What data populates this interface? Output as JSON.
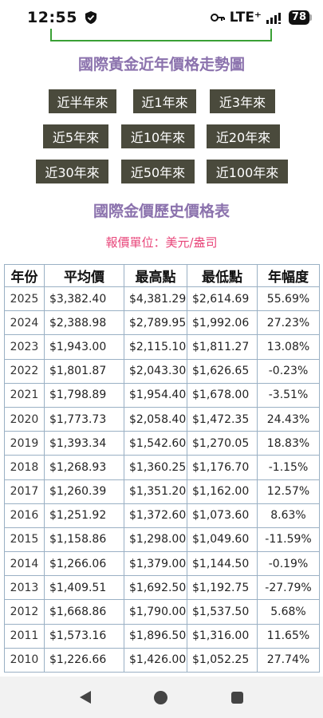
{
  "status": {
    "time": "12:55",
    "network": "LTE⁺",
    "battery": "78"
  },
  "chart_title": "國際黃金近年價格走勢圖",
  "period_buttons": [
    "近半年來",
    "近1年來",
    "近3年來",
    "近5年來",
    "近10年來",
    "近20年來",
    "近30年來",
    "近50年來",
    "近100年來"
  ],
  "table_title": "國際金價歷史價格表",
  "unit_label": "報價單位：美元/盎司",
  "table": {
    "headers": [
      "年份",
      "平均價",
      "最高點",
      "最低點",
      "年幅度"
    ],
    "rows": [
      [
        "2025",
        "$3,382.40",
        "$4,381.29",
        "$2,614.69",
        "55.69%"
      ],
      [
        "2024",
        "$2,388.98",
        "$2,789.95",
        "$1,992.06",
        "27.23%"
      ],
      [
        "2023",
        "$1,943.00",
        "$2,115.10",
        "$1,811.27",
        "13.08%"
      ],
      [
        "2022",
        "$1,801.87",
        "$2,043.30",
        "$1,626.65",
        "-0.23%"
      ],
      [
        "2021",
        "$1,798.89",
        "$1,954.40",
        "$1,678.00",
        "-3.51%"
      ],
      [
        "2020",
        "$1,773.73",
        "$2,058.40",
        "$1,472.35",
        "24.43%"
      ],
      [
        "2019",
        "$1,393.34",
        "$1,542.60",
        "$1,270.05",
        "18.83%"
      ],
      [
        "2018",
        "$1,268.93",
        "$1,360.25",
        "$1,176.70",
        "-1.15%"
      ],
      [
        "2017",
        "$1,260.39",
        "$1,351.20",
        "$1,162.00",
        "12.57%"
      ],
      [
        "2016",
        "$1,251.92",
        "$1,372.60",
        "$1,073.60",
        "8.63%"
      ],
      [
        "2015",
        "$1,158.86",
        "$1,298.00",
        "$1,049.60",
        "-11.59%"
      ],
      [
        "2014",
        "$1,266.06",
        "$1,379.00",
        "$1,144.50",
        "-0.19%"
      ],
      [
        "2013",
        "$1,409.51",
        "$1,692.50",
        "$1,192.75",
        "-27.79%"
      ],
      [
        "2012",
        "$1,668.86",
        "$1,790.00",
        "$1,537.50",
        "5.68%"
      ],
      [
        "2011",
        "$1,573.16",
        "$1,896.50",
        "$1,316.00",
        "11.65%"
      ],
      [
        "2010",
        "$1,226.66",
        "$1,426.00",
        "$1,052.25",
        "27.74%"
      ]
    ]
  },
  "colors": {
    "title": "#8b72ad",
    "unit": "#e8467a",
    "button_bg": "#4a4a3c",
    "positive": "#1f8a1f",
    "negative": "#e02020"
  },
  "icons": {
    "status": [
      "shield-icon",
      "key-icon",
      "signal-icon",
      "battery-icon"
    ],
    "nav": [
      "back-icon",
      "home-icon",
      "recents-icon"
    ]
  }
}
